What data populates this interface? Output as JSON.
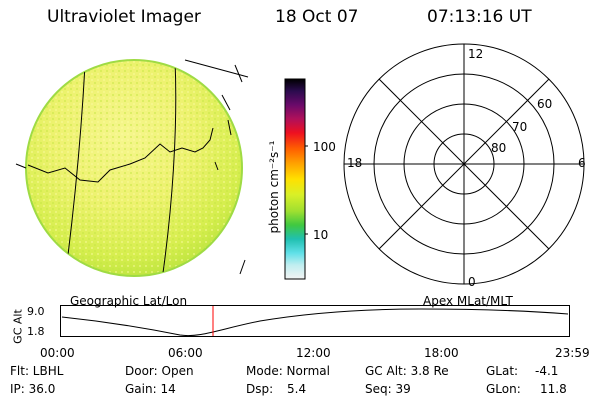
{
  "header": {
    "title": "Ultraviolet Imager",
    "date": "18 Oct 07",
    "time": "07:13:16 UT"
  },
  "colorbar": {
    "unit_label": "photon cm⁻²s⁻¹",
    "ticks": [
      "100",
      "10"
    ]
  },
  "polar_plot": {
    "label_top": "12",
    "label_left": "18",
    "label_right": "6",
    "label_bottom": "0",
    "lat_labels": [
      "60",
      "70",
      "80"
    ]
  },
  "footer_labels": {
    "left": "Geographic Lat/Lon",
    "right": "Apex MLat/MLT"
  },
  "altitude_plot": {
    "axis_label": "GC Alt",
    "y_ticks": [
      "9.0",
      "1.8"
    ],
    "x_ticks": [
      "00:00",
      "06:00",
      "12:00",
      "18:00",
      "23:59"
    ],
    "marker_time": "07:13:16",
    "line_color": "#000000",
    "marker_color": "#ff0000"
  },
  "status": {
    "filter": "Flt: LBHL",
    "ip": "IP: 36.0",
    "door": "Door: Open",
    "gain": "Gain: 14",
    "mode": "Mode: Normal",
    "dsp_label": "Dsp:",
    "dsp_value": "5.4",
    "gc_alt": "GC Alt: 3.8 Re",
    "seq": "Seq: 39",
    "glat_label": "GLat:",
    "glat_value": "-4.1",
    "glon_label": "GLon:",
    "glon_value": "11.8"
  }
}
